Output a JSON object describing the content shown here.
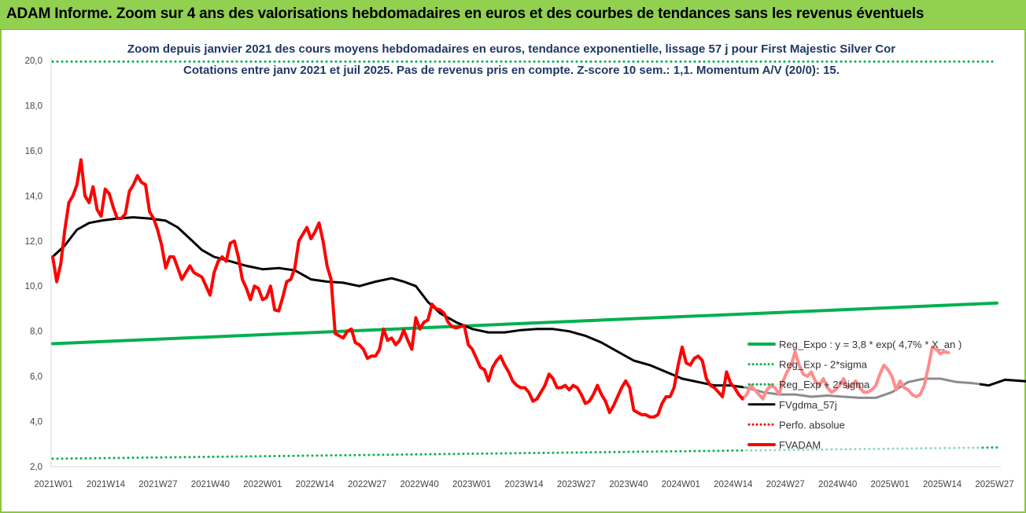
{
  "banner": {
    "title": "ADAM Informe. Zoom sur 4 ans des valorisations hebdomadaires en euros et des courbes de tendances sans les revenus éventuels"
  },
  "colors": {
    "banner_bg": "#92d050",
    "reg_expo": "#00b050",
    "fv_adam": "#ff0000",
    "fv_gdma": "#000000",
    "perfo": "#ff0000",
    "title_text": "#1f3864"
  },
  "chart_data": {
    "type": "line",
    "title": "Zoom depuis janvier 2021 des cours moyens hebdomadaires en euros, tendance exponentielle, lissage 57 j pour First Majestic Silver Cor",
    "subtitle": "Cotations entre janv 2021 et juil 2025. Pas de revenus pris en compte. Z-score 10 sem.: 1,1. Momentum A/V (20/0): 15.",
    "xlabel": "",
    "ylabel": "",
    "ylim": [
      2,
      20
    ],
    "yticks": [
      "2,0",
      "4,0",
      "6,0",
      "8,0",
      "10,0",
      "12,0",
      "14,0",
      "16,0",
      "18,0",
      "20,0"
    ],
    "x_ticks": [
      "2021W01",
      "2021W14",
      "2021W27",
      "2021W40",
      "2022W01",
      "2022W14",
      "2022W27",
      "2022W40",
      "2023W01",
      "2023W14",
      "2023W27",
      "2023W40",
      "2024W01",
      "2024W14",
      "2024W27",
      "2024W40",
      "2025W01",
      "2025W14",
      "2025W27"
    ],
    "legend_position": "right",
    "grid": false,
    "series": [
      {
        "name": "Reg_Expo : y = 3,8 * exp( 4,7% *  X_an )",
        "style": "solid",
        "color": "#00b050",
        "points": [
          [
            0,
            7.45
          ],
          [
            234,
            9.25
          ]
        ]
      },
      {
        "name": "Reg_Exp - 2*sigma",
        "style": "dotted",
        "color": "#00b050",
        "points": [
          [
            0,
            2.35
          ],
          [
            234,
            2.85
          ]
        ]
      },
      {
        "name": "Reg_Exp + 2*sigma",
        "style": "dotted",
        "color": "#00b050",
        "points": [
          [
            0,
            19.95
          ],
          [
            234,
            19.95
          ]
        ]
      },
      {
        "name": "FVgdma_57j",
        "style": "solid",
        "color": "#000000",
        "points": [
          [
            0,
            11.3
          ],
          [
            3,
            11.8
          ],
          [
            6,
            12.5
          ],
          [
            9,
            12.8
          ],
          [
            12,
            12.9
          ],
          [
            16,
            13.0
          ],
          [
            20,
            13.05
          ],
          [
            24,
            13.0
          ],
          [
            28,
            12.9
          ],
          [
            31,
            12.6
          ],
          [
            34,
            12.1
          ],
          [
            37,
            11.6
          ],
          [
            40,
            11.3
          ],
          [
            44,
            11.1
          ],
          [
            48,
            10.9
          ],
          [
            52,
            10.75
          ],
          [
            56,
            10.8
          ],
          [
            60,
            10.7
          ],
          [
            64,
            10.3
          ],
          [
            68,
            10.2
          ],
          [
            72,
            10.15
          ],
          [
            76,
            10.0
          ],
          [
            80,
            10.2
          ],
          [
            84,
            10.35
          ],
          [
            87,
            10.2
          ],
          [
            90,
            10.0
          ],
          [
            93,
            9.3
          ],
          [
            96,
            8.8
          ],
          [
            100,
            8.4
          ],
          [
            104,
            8.1
          ],
          [
            108,
            7.95
          ],
          [
            112,
            7.95
          ],
          [
            116,
            8.05
          ],
          [
            120,
            8.1
          ],
          [
            124,
            8.1
          ],
          [
            128,
            8.0
          ],
          [
            132,
            7.8
          ],
          [
            136,
            7.5
          ],
          [
            140,
            7.1
          ],
          [
            144,
            6.7
          ],
          [
            148,
            6.5
          ],
          [
            152,
            6.2
          ],
          [
            156,
            5.9
          ],
          [
            160,
            5.75
          ],
          [
            164,
            5.6
          ],
          [
            168,
            5.6
          ],
          [
            172,
            5.5
          ],
          [
            176,
            5.3
          ],
          [
            180,
            5.2
          ],
          [
            184,
            5.2
          ],
          [
            188,
            5.1
          ],
          [
            192,
            5.15
          ],
          [
            196,
            5.1
          ],
          [
            200,
            5.05
          ],
          [
            204,
            5.05
          ],
          [
            208,
            5.3
          ],
          [
            212,
            5.75
          ],
          [
            216,
            5.9
          ],
          [
            220,
            5.9
          ],
          [
            224,
            5.75
          ],
          [
            228,
            5.7
          ],
          [
            232,
            5.6
          ],
          [
            236,
            5.85
          ],
          [
            240,
            5.8
          ],
          [
            244,
            5.75
          ],
          [
            248,
            5.7
          ],
          [
            252,
            5.75
          ],
          [
            256,
            5.8
          ],
          [
            260,
            5.9
          ],
          [
            264,
            6.0
          ],
          [
            268,
            6.2
          ],
          [
            270,
            6.5
          ],
          [
            273,
            6.65
          ]
        ]
      },
      {
        "name": "Perfo. absolue",
        "style": "dotted",
        "color": "#ff0000",
        "points": []
      },
      {
        "name": "FVADAM",
        "style": "solid",
        "color": "#ff0000",
        "points": [
          [
            0,
            11.3
          ],
          [
            1,
            10.2
          ],
          [
            2,
            11.0
          ],
          [
            3,
            12.5
          ],
          [
            4,
            13.7
          ],
          [
            5,
            14.0
          ],
          [
            6,
            14.5
          ],
          [
            7,
            15.6
          ],
          [
            8,
            14.0
          ],
          [
            9,
            13.7
          ],
          [
            10,
            14.4
          ],
          [
            11,
            13.4
          ],
          [
            12,
            13.1
          ],
          [
            13,
            14.3
          ],
          [
            14,
            14.1
          ],
          [
            15,
            13.5
          ],
          [
            16,
            13.0
          ],
          [
            17,
            13.0
          ],
          [
            18,
            13.2
          ],
          [
            19,
            14.2
          ],
          [
            20,
            14.5
          ],
          [
            21,
            14.9
          ],
          [
            22,
            14.6
          ],
          [
            23,
            14.5
          ],
          [
            24,
            13.3
          ],
          [
            25,
            13.0
          ],
          [
            26,
            12.5
          ],
          [
            27,
            11.8
          ],
          [
            28,
            10.8
          ],
          [
            29,
            11.3
          ],
          [
            30,
            11.3
          ],
          [
            31,
            10.8
          ],
          [
            32,
            10.3
          ],
          [
            33,
            10.6
          ],
          [
            34,
            10.9
          ],
          [
            35,
            10.6
          ],
          [
            36,
            10.5
          ],
          [
            37,
            10.4
          ],
          [
            38,
            10.0
          ],
          [
            39,
            9.6
          ],
          [
            40,
            10.6
          ],
          [
            41,
            11.1
          ],
          [
            42,
            11.3
          ],
          [
            43,
            11.1
          ],
          [
            44,
            11.9
          ],
          [
            45,
            12.0
          ],
          [
            46,
            11.3
          ],
          [
            47,
            10.3
          ],
          [
            48,
            9.9
          ],
          [
            49,
            9.4
          ],
          [
            50,
            10.0
          ],
          [
            51,
            9.9
          ],
          [
            52,
            9.4
          ],
          [
            53,
            9.5
          ],
          [
            54,
            10.0
          ],
          [
            55,
            8.95
          ],
          [
            56,
            8.9
          ],
          [
            57,
            9.5
          ],
          [
            58,
            10.2
          ],
          [
            59,
            10.3
          ],
          [
            60,
            10.8
          ],
          [
            61,
            12.0
          ],
          [
            62,
            12.3
          ],
          [
            63,
            12.6
          ],
          [
            64,
            12.1
          ],
          [
            65,
            12.4
          ],
          [
            66,
            12.8
          ],
          [
            67,
            12.0
          ],
          [
            68,
            10.9
          ],
          [
            69,
            10.3
          ],
          [
            70,
            7.9
          ],
          [
            71,
            7.8
          ],
          [
            72,
            7.7
          ],
          [
            73,
            8.0
          ],
          [
            74,
            8.1
          ],
          [
            75,
            7.5
          ],
          [
            76,
            7.4
          ],
          [
            77,
            7.2
          ],
          [
            78,
            6.8
          ],
          [
            79,
            6.9
          ],
          [
            80,
            6.9
          ],
          [
            81,
            7.2
          ],
          [
            82,
            8.1
          ],
          [
            83,
            7.6
          ],
          [
            84,
            7.7
          ],
          [
            85,
            7.4
          ],
          [
            86,
            7.6
          ],
          [
            87,
            8.05
          ],
          [
            88,
            7.6
          ],
          [
            89,
            7.2
          ],
          [
            90,
            8.6
          ],
          [
            91,
            8.1
          ],
          [
            92,
            8.4
          ],
          [
            93,
            8.5
          ],
          [
            94,
            9.2
          ],
          [
            95,
            9.0
          ],
          [
            96,
            8.95
          ],
          [
            97,
            8.8
          ],
          [
            98,
            8.4
          ],
          [
            99,
            8.2
          ],
          [
            100,
            8.15
          ],
          [
            101,
            8.2
          ],
          [
            102,
            8.25
          ],
          [
            103,
            7.4
          ],
          [
            104,
            7.2
          ],
          [
            105,
            6.8
          ],
          [
            106,
            6.4
          ],
          [
            107,
            6.3
          ],
          [
            108,
            5.8
          ],
          [
            109,
            6.4
          ],
          [
            110,
            6.7
          ],
          [
            111,
            6.9
          ],
          [
            112,
            6.5
          ],
          [
            113,
            6.2
          ],
          [
            114,
            5.8
          ],
          [
            115,
            5.6
          ],
          [
            116,
            5.5
          ],
          [
            117,
            5.5
          ],
          [
            118,
            5.3
          ],
          [
            119,
            4.9
          ],
          [
            120,
            5.0
          ],
          [
            121,
            5.3
          ],
          [
            122,
            5.6
          ],
          [
            123,
            6.1
          ],
          [
            124,
            5.9
          ],
          [
            125,
            5.5
          ],
          [
            126,
            5.5
          ],
          [
            127,
            5.6
          ],
          [
            128,
            5.4
          ],
          [
            129,
            5.6
          ],
          [
            130,
            5.5
          ],
          [
            131,
            5.2
          ],
          [
            132,
            4.8
          ],
          [
            133,
            4.9
          ],
          [
            134,
            5.2
          ],
          [
            135,
            5.6
          ],
          [
            136,
            5.2
          ],
          [
            137,
            4.9
          ],
          [
            138,
            4.4
          ],
          [
            139,
            4.7
          ],
          [
            140,
            5.1
          ],
          [
            141,
            5.5
          ],
          [
            142,
            5.8
          ],
          [
            143,
            5.5
          ],
          [
            144,
            4.5
          ],
          [
            145,
            4.4
          ],
          [
            146,
            4.3
          ],
          [
            147,
            4.3
          ],
          [
            148,
            4.2
          ],
          [
            149,
            4.2
          ],
          [
            150,
            4.3
          ],
          [
            151,
            4.8
          ],
          [
            152,
            5.1
          ],
          [
            153,
            5.1
          ],
          [
            154,
            5.5
          ],
          [
            155,
            6.5
          ],
          [
            156,
            7.3
          ],
          [
            157,
            6.6
          ],
          [
            158,
            6.5
          ],
          [
            159,
            6.8
          ],
          [
            160,
            6.9
          ],
          [
            161,
            6.7
          ],
          [
            162,
            5.9
          ],
          [
            163,
            5.6
          ],
          [
            164,
            5.5
          ],
          [
            165,
            5.3
          ],
          [
            166,
            5.1
          ],
          [
            167,
            6.2
          ],
          [
            168,
            5.7
          ],
          [
            169,
            5.5
          ],
          [
            170,
            5.2
          ],
          [
            171,
            5.0
          ],
          [
            172,
            5.2
          ],
          [
            173,
            5.6
          ],
          [
            174,
            5.4
          ],
          [
            175,
            5.2
          ],
          [
            176,
            5.0
          ],
          [
            177,
            5.4
          ],
          [
            178,
            5.6
          ],
          [
            179,
            5.5
          ],
          [
            180,
            5.2
          ],
          [
            181,
            5.8
          ],
          [
            182,
            6.2
          ],
          [
            183,
            6.5
          ],
          [
            184,
            7.1
          ],
          [
            185,
            6.5
          ],
          [
            186,
            6.1
          ],
          [
            187,
            6.0
          ],
          [
            188,
            6.2
          ],
          [
            189,
            5.8
          ],
          [
            190,
            5.6
          ],
          [
            191,
            5.9
          ],
          [
            192,
            5.5
          ],
          [
            193,
            5.3
          ],
          [
            194,
            5.4
          ],
          [
            195,
            5.6
          ],
          [
            196,
            5.9
          ],
          [
            197,
            5.5
          ],
          [
            198,
            5.6
          ],
          [
            199,
            5.8
          ],
          [
            200,
            5.5
          ],
          [
            201,
            5.3
          ],
          [
            202,
            5.3
          ],
          [
            203,
            5.4
          ],
          [
            204,
            5.6
          ],
          [
            205,
            6.1
          ],
          [
            206,
            6.5
          ],
          [
            207,
            6.3
          ],
          [
            208,
            6.0
          ],
          [
            209,
            5.4
          ],
          [
            210,
            5.8
          ],
          [
            211,
            5.5
          ],
          [
            212,
            5.4
          ],
          [
            213,
            5.2
          ],
          [
            214,
            5.1
          ],
          [
            215,
            5.2
          ],
          [
            216,
            5.6
          ],
          [
            217,
            6.4
          ],
          [
            218,
            7.3
          ],
          [
            219,
            7.2
          ],
          [
            220,
            7.0
          ],
          [
            221,
            7.1
          ],
          [
            222,
            7.05
          ]
        ]
      }
    ]
  }
}
